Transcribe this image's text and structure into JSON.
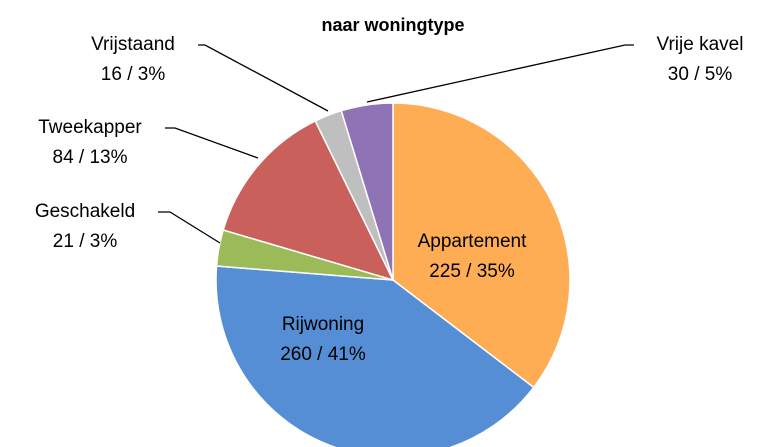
{
  "chart_data": {
    "type": "pie",
    "title": "naar woningtype",
    "categories": [
      "Appartement",
      "Rijwoning",
      "Geschakeld",
      "Tweekapper",
      "Vrijstaand",
      "Vrije kavel"
    ],
    "values": [
      225,
      260,
      21,
      84,
      16,
      30
    ],
    "value_labels": [
      "225 / 35%",
      "260 / 41%",
      "21 / 3%",
      "84 / 13%",
      "16 / 3%",
      "30 / 5%"
    ],
    "colors": [
      "#ffad55",
      "#558ed5",
      "#9bbb59",
      "#c9605c",
      "#bfbfbf",
      "#8f73b4"
    ]
  }
}
